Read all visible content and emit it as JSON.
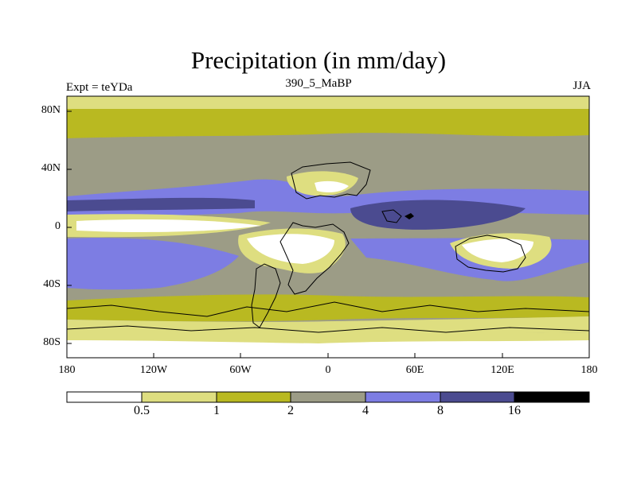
{
  "title": "Precipitation (in mm/day)",
  "left_subtitle": "Expt = teYDa",
  "center_subtitle": "390_5_MaBP",
  "right_subtitle": "JJA",
  "map": {
    "projection": "cylindrical equidistant",
    "lon_range": [
      -180,
      180
    ],
    "lat_range": [
      -90,
      90
    ],
    "y_ticks": [
      {
        "label": "80N",
        "lat": 80
      },
      {
        "label": "40N",
        "lat": 40
      },
      {
        "label": "0",
        "lat": 0
      },
      {
        "label": "40S",
        "lat": -40
      },
      {
        "label": "80S",
        "lat": -80
      }
    ],
    "x_ticks": [
      {
        "label": "180",
        "lon": -180
      },
      {
        "label": "120W",
        "lon": -120
      },
      {
        "label": "60W",
        "lon": -60
      },
      {
        "label": "0",
        "lon": 0
      },
      {
        "label": "60E",
        "lon": 60
      },
      {
        "label": "120E",
        "lon": 120
      },
      {
        "label": "180",
        "lon": 180
      }
    ]
  },
  "colorbar": {
    "levels": [
      "0.5",
      "1",
      "2",
      "4",
      "8",
      "16"
    ],
    "colors": [
      "#ffffff",
      "#dede80",
      "#b9b921",
      "#9c9c86",
      "#7d7de3",
      "#4b4b90",
      "#000000"
    ]
  },
  "colors": {
    "dry": "#ffffff",
    "very_low": "#dede80",
    "low": "#b9b921",
    "moderate": "#9c9c86",
    "high": "#7d7de3",
    "very_high": "#4b4b90",
    "extreme": "#000000"
  }
}
